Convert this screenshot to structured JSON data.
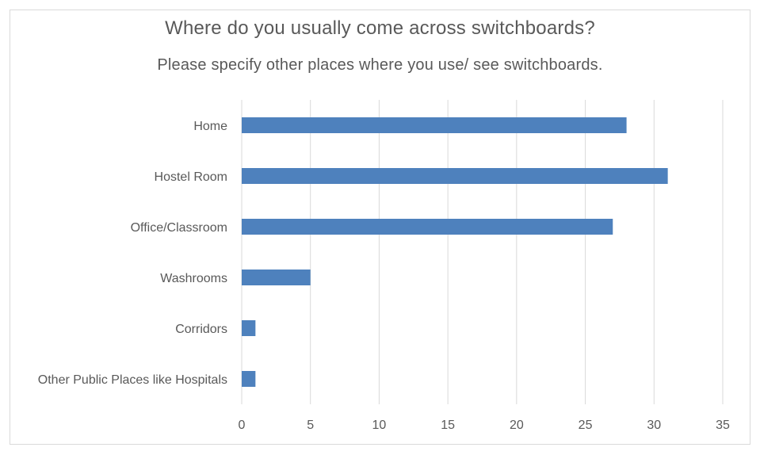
{
  "chart_data": {
    "type": "bar",
    "orientation": "horizontal",
    "title": "Where do you usually come across switchboards?",
    "subtitle": "Please specify other places where you use/ see switchboards.",
    "categories": [
      "Home",
      "Hostel Room",
      "Office/Classroom",
      "Washrooms",
      "Corridors",
      "Other Public Places like Hospitals"
    ],
    "values": [
      28,
      31,
      27,
      5,
      1,
      1
    ],
    "xlim": [
      0,
      35
    ],
    "xticks": [
      0,
      5,
      10,
      15,
      20,
      25,
      30,
      35
    ],
    "grid": true,
    "bar_color": "#4e81bd",
    "legend": "none"
  }
}
